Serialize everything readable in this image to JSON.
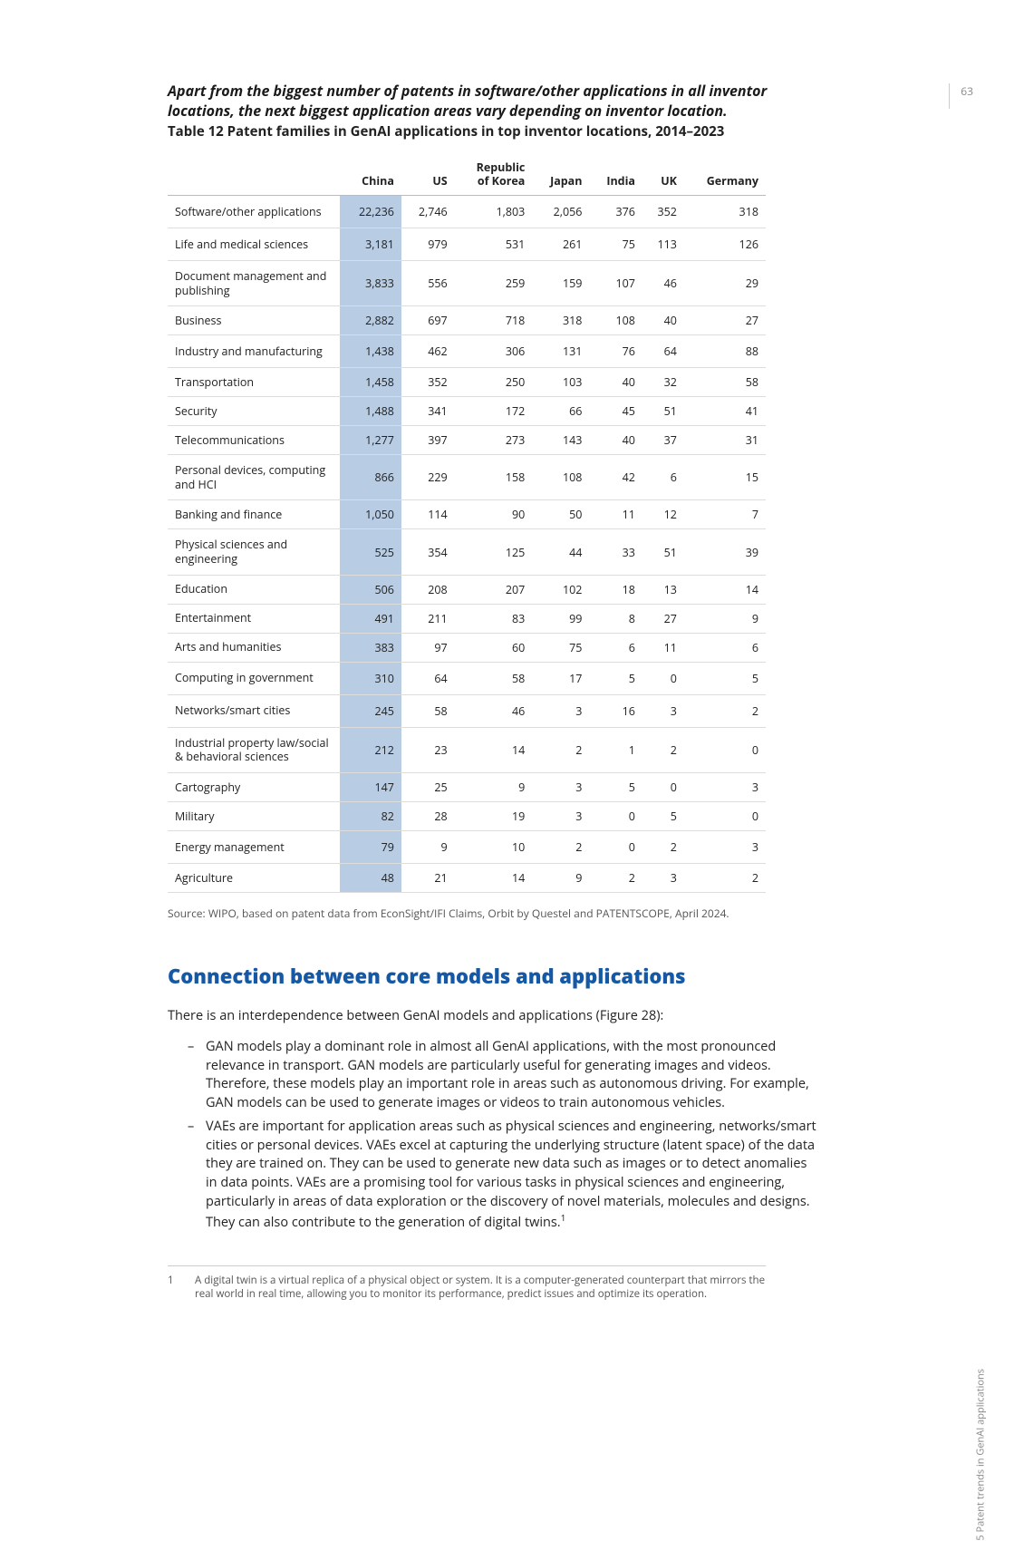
{
  "page_number": "63",
  "side_label": "5 Patent trends in GenAI applications",
  "lead_text": "Apart from the biggest number of patents in software/other applications in all inventor locations, the next biggest application areas vary depending on inventor location.",
  "table_caption": "Table 12 Patent families in GenAI applications in top inventor locations, 2014–2023",
  "table": {
    "highlight_color": "#b8cce4",
    "border_color": "#dddddd",
    "columns": [
      "",
      "China",
      "US",
      "Republic of Korea",
      "Japan",
      "India",
      "UK",
      "Germany"
    ],
    "rows": [
      {
        "label": "Software/other applications",
        "cells": [
          "22,236",
          "2,746",
          "1,803",
          "2,056",
          "376",
          "352",
          "318"
        ],
        "tall": true
      },
      {
        "label": "Life and medical sciences",
        "cells": [
          "3,181",
          "979",
          "531",
          "261",
          "75",
          "113",
          "126"
        ],
        "tall": true
      },
      {
        "label": "Document management and publishing",
        "cells": [
          "3,833",
          "556",
          "259",
          "159",
          "107",
          "46",
          "29"
        ],
        "tall": true
      },
      {
        "label": "Business",
        "cells": [
          "2,882",
          "697",
          "718",
          "318",
          "108",
          "40",
          "27"
        ]
      },
      {
        "label": "Industry and manufacturing",
        "cells": [
          "1,438",
          "462",
          "306",
          "131",
          "76",
          "64",
          "88"
        ],
        "tall": true
      },
      {
        "label": "Transportation",
        "cells": [
          "1,458",
          "352",
          "250",
          "103",
          "40",
          "32",
          "58"
        ]
      },
      {
        "label": "Security",
        "cells": [
          "1,488",
          "341",
          "172",
          "66",
          "45",
          "51",
          "41"
        ]
      },
      {
        "label": "Telecommunications",
        "cells": [
          "1,277",
          "397",
          "273",
          "143",
          "40",
          "37",
          "31"
        ]
      },
      {
        "label": "Personal devices, computing and HCI",
        "cells": [
          "866",
          "229",
          "158",
          "108",
          "42",
          "6",
          "15"
        ],
        "tall": true
      },
      {
        "label": "Banking and finance",
        "cells": [
          "1,050",
          "114",
          "90",
          "50",
          "11",
          "12",
          "7"
        ]
      },
      {
        "label": "Physical sciences and engineering",
        "cells": [
          "525",
          "354",
          "125",
          "44",
          "33",
          "51",
          "39"
        ],
        "tall": true
      },
      {
        "label": "Education",
        "cells": [
          "506",
          "208",
          "207",
          "102",
          "18",
          "13",
          "14"
        ]
      },
      {
        "label": "Entertainment",
        "cells": [
          "491",
          "211",
          "83",
          "99",
          "8",
          "27",
          "9"
        ]
      },
      {
        "label": "Arts and humanities",
        "cells": [
          "383",
          "97",
          "60",
          "75",
          "6",
          "11",
          "6"
        ]
      },
      {
        "label": "Computing in government",
        "cells": [
          "310",
          "64",
          "58",
          "17",
          "5",
          "0",
          "5"
        ],
        "tall": true
      },
      {
        "label": "Networks/smart cities",
        "cells": [
          "245",
          "58",
          "46",
          "3",
          "16",
          "3",
          "2"
        ],
        "tall": true
      },
      {
        "label": "Industrial property law/social & behavioral sciences",
        "cells": [
          "212",
          "23",
          "14",
          "2",
          "1",
          "2",
          "0"
        ],
        "tall": true
      },
      {
        "label": "Cartography",
        "cells": [
          "147",
          "25",
          "9",
          "3",
          "5",
          "0",
          "3"
        ]
      },
      {
        "label": "Military",
        "cells": [
          "82",
          "28",
          "19",
          "3",
          "0",
          "5",
          "0"
        ]
      },
      {
        "label": "Energy management",
        "cells": [
          "79",
          "9",
          "10",
          "2",
          "0",
          "2",
          "3"
        ],
        "tall": true
      },
      {
        "label": "Agriculture",
        "cells": [
          "48",
          "21",
          "14",
          "9",
          "2",
          "3",
          "2"
        ]
      }
    ]
  },
  "source_note": "Source: WIPO, based on patent data from EconSight/IFI Claims, Orbit by Questel and PATENTSCOPE, April 2024.",
  "section_heading": "Connection between core models and applications",
  "intro_para": "There is an interdependence between GenAI models and applications (Figure 28):",
  "bullets": [
    "GAN models play a dominant role in almost all GenAI applications, with the most pronounced relevance in transport. GAN models are particularly useful for generating images and videos. Therefore, these models play an important role in areas such as autonomous driving. For example, GAN models can be used to generate images or videos to train autonomous vehicles.",
    "VAEs are important for application areas such as physical sciences and engineering, networks/smart cities or personal devices. VAEs excel at capturing the underlying structure (latent space) of the data they are trained on. They can be used to generate new data such as images or to detect anomalies in data points. VAEs are a promising tool for various tasks in physical sciences and engineering, particularly in areas of data exploration or the discovery of novel materials, molecules and designs. They can also contribute to the generation of digital twins."
  ],
  "footnote_marker": "1",
  "footnote": {
    "num": "1",
    "text": "A digital twin is a virtual replica of a physical object or system. It is a computer-generated counterpart that mirrors the real world in real time, allowing you to monitor its performance, predict issues and optimize its operation."
  }
}
